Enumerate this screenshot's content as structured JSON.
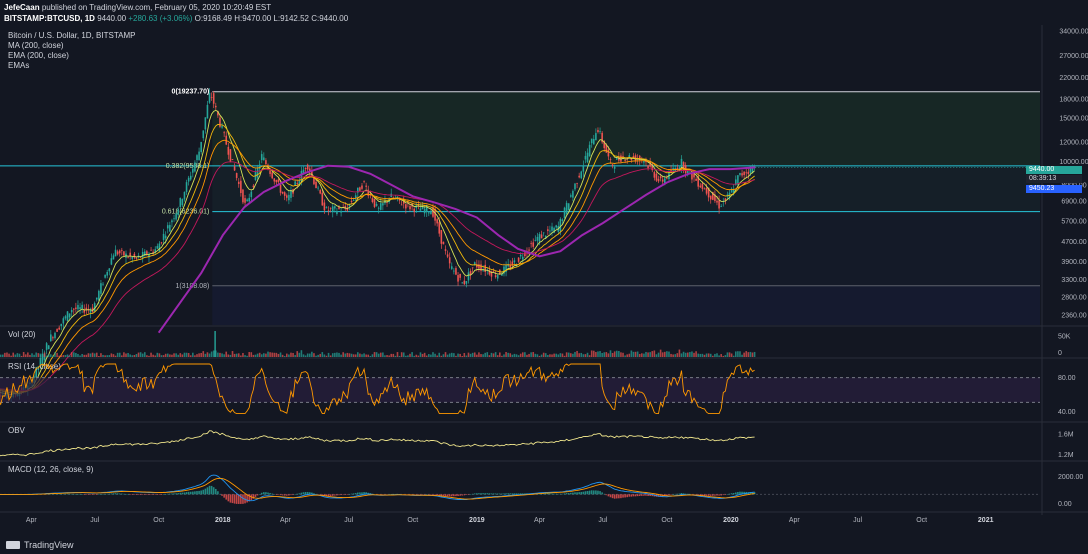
{
  "header": {
    "author": "JefeCaan",
    "published": "published on TradingView.com, February 05, 2020 10:20:49 EST",
    "symbol": "BITSTAMP:BTCUSD, 1D",
    "last": "9440.00",
    "change": "+280.63 (+3.06%)",
    "o": "O:9168.49",
    "h": "H:9470.00",
    "l": "L:9142.52",
    "c": "C:9440.00"
  },
  "legend": {
    "title": "Bitcoin / U.S. Dollar, 1D, BITSTAMP",
    "ma": "MA (200, close)",
    "ema": "EMA (200, close)",
    "emas": "EMAs"
  },
  "fib": {
    "top": "0(19237.70)",
    "l382": "0.382(9588.1)",
    "l618": "0.618(6236.01)",
    "bottom": "1(3108.08)"
  },
  "price_tags": {
    "last": "9440.00",
    "countdown": "08:39:13",
    "ma": "9450.23"
  },
  "pane_labels": {
    "vol": "Vol (20)",
    "rsi": "RSI (14, close)",
    "obv": "OBV",
    "macd": "MACD (12, 26, close, 9)"
  },
  "colors": {
    "background": "#131722",
    "fib_line": "#26c6da",
    "ma_purple": "#9c27b0",
    "ema_yellow": "#f0b90b",
    "ema_orange": "#ff9800",
    "ema_red": "#c2185b",
    "up": "#26a69a",
    "down": "#ef5350",
    "rsi_line": "#ff9800",
    "obv_line": "#f0e68c",
    "macd_line": "#2196f3"
  },
  "chart_data": [
    {
      "type": "line",
      "pane": "price",
      "title": "Bitcoin / U.S. Dollar, 1D, BITSTAMP",
      "scale": "log",
      "y_ticks": [
        34000,
        27000,
        22000,
        18000,
        15000,
        12000,
        10000,
        8000,
        6900,
        5700,
        4700,
        3900,
        3300,
        2800,
        2360
      ],
      "y_tick_labels": [
        "34000.00",
        "27000.00",
        "22000.00",
        "18000.00",
        "15000.00",
        "12000.00",
        "10000.00",
        "8000.00",
        "6900.00",
        "5700.00",
        "4700.00",
        "3900.00",
        "3300.00",
        "2800.00",
        "2360.00"
      ],
      "x_ticks": [
        "Apr",
        "Jul",
        "Oct",
        "2018",
        "Apr",
        "Jul",
        "Oct",
        "2019",
        "Apr",
        "Jul",
        "Oct",
        "2020",
        "Apr",
        "Jul",
        "Oct",
        "2021"
      ],
      "x_tick_dates": [
        "2017-04-01",
        "2017-07-01",
        "2017-10-01",
        "2018-01-01",
        "2018-04-01",
        "2018-07-01",
        "2018-10-01",
        "2019-01-01",
        "2019-04-01",
        "2019-07-01",
        "2019-10-01",
        "2020-01-01",
        "2020-04-01",
        "2020-07-01",
        "2020-10-01",
        "2021-01-01"
      ],
      "fib_levels": [
        19237.7,
        9588.1,
        6236.01,
        3108.08
      ],
      "series": [
        {
          "name": "Bitcoin / U.S. Dollar",
          "x": [
            "2017-02-01",
            "2017-03-01",
            "2017-04-01",
            "2017-05-01",
            "2017-06-01",
            "2017-07-01",
            "2017-08-01",
            "2017-09-01",
            "2017-10-01",
            "2017-11-01",
            "2017-12-01",
            "2017-12-17",
            "2018-01-01",
            "2018-02-06",
            "2018-03-01",
            "2018-04-06",
            "2018-05-05",
            "2018-06-01",
            "2018-07-01",
            "2018-07-25",
            "2018-08-15",
            "2018-09-01",
            "2018-10-01",
            "2018-11-01",
            "2018-11-25",
            "2018-12-15",
            "2019-01-01",
            "2019-02-01",
            "2019-03-01",
            "2019-04-02",
            "2019-05-01",
            "2019-05-30",
            "2019-06-26",
            "2019-07-16",
            "2019-08-01",
            "2019-09-01",
            "2019-09-24",
            "2019-10-25",
            "2019-11-01",
            "2019-12-01",
            "2019-12-18",
            "2020-01-01",
            "2020-01-15",
            "2020-02-05"
          ],
          "values": [
            1200,
            1100,
            1200,
            1900,
            2500,
            2500,
            4300,
            4000,
            4400,
            6500,
            11000,
            19237.7,
            14000,
            6500,
            10500,
            6900,
            9800,
            6300,
            6400,
            8200,
            6300,
            7200,
            6500,
            6300,
            3800,
            3150,
            3800,
            3450,
            3900,
            4900,
            5400,
            8700,
            13800,
            9600,
            10500,
            10200,
            8200,
            9900,
            9200,
            7500,
            6600,
            7200,
            8700,
            9440
          ]
        },
        {
          "name": "MA (200, close)",
          "x": [
            "2017-10-01",
            "2017-12-01",
            "2018-01-01",
            "2018-02-01",
            "2018-03-01",
            "2018-04-01",
            "2018-05-01",
            "2018-06-01",
            "2018-07-01",
            "2018-08-01",
            "2018-09-01",
            "2018-10-01",
            "2018-11-01",
            "2018-12-01",
            "2019-01-01",
            "2019-02-01",
            "2019-03-01",
            "2019-04-01",
            "2019-05-01",
            "2019-06-01",
            "2019-07-01",
            "2019-08-01",
            "2019-09-01",
            "2019-10-01",
            "2019-11-01",
            "2019-12-01",
            "2020-01-01",
            "2020-02-05"
          ],
          "values": [
            2000,
            3500,
            5000,
            6500,
            7500,
            8300,
            9000,
            9600,
            9500,
            8900,
            8000,
            7200,
            6800,
            6400,
            5900,
            5000,
            4400,
            4100,
            4300,
            5000,
            5600,
            6400,
            7300,
            8200,
            8900,
            9300,
            9300,
            9450
          ]
        }
      ]
    },
    {
      "type": "bar",
      "pane": "volume",
      "title": "Vol (20)",
      "y_tick_labels": [
        "50K",
        "0"
      ]
    },
    {
      "type": "line",
      "pane": "rsi",
      "title": "RSI (14, close)",
      "ylim": [
        0,
        100
      ],
      "bands": [
        70,
        30
      ],
      "y_tick_labels": [
        "80.00",
        "40.00"
      ]
    },
    {
      "type": "line",
      "pane": "obv",
      "title": "OBV",
      "y_tick_labels": [
        "1.6M",
        "1.2M"
      ]
    },
    {
      "type": "line",
      "pane": "macd",
      "title": "MACD (12, 26, close, 9)",
      "y_tick_labels": [
        "2000.00",
        "0.00"
      ]
    }
  ]
}
